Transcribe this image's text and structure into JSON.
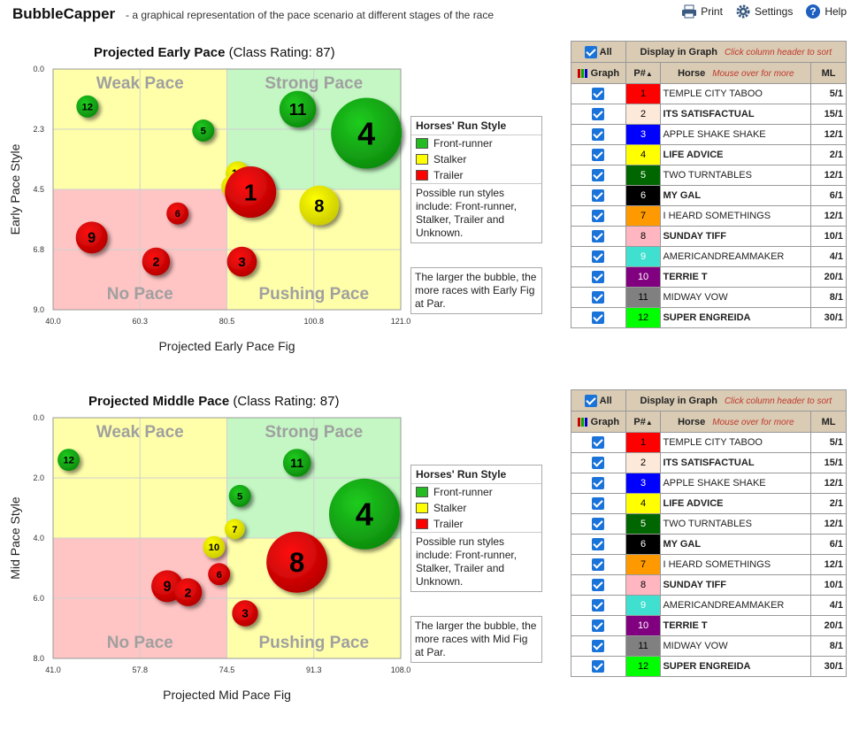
{
  "app": {
    "title": "BubbleCapper",
    "subtitle": "- a graphical representation of the pace scenario at different stages of the race",
    "toolbar": {
      "print": "Print",
      "settings": "Settings",
      "help": "Help"
    }
  },
  "colors": {
    "front": "#33cc33",
    "stalker": "#ffff00",
    "trailer": "#ff0000",
    "weak": "#ffffaa",
    "strong": "#c2f5c2",
    "nopace": "#ffc0c0",
    "pushing": "#ffffaa"
  },
  "legend": {
    "title": "Horses' Run Style",
    "items": [
      {
        "label": "Front-runner",
        "color": "#22bb22"
      },
      {
        "label": "Stalker",
        "color": "#ffff00"
      },
      {
        "label": "Trailer",
        "color": "#ff0000"
      }
    ],
    "note": "Possible run styles include: Front-runner, Stalker, Trailer and Unknown."
  },
  "quadrants": {
    "weak": "Weak Pace",
    "strong": "Strong Pace",
    "no": "No Pace",
    "pushing": "Pushing Pace"
  },
  "table": {
    "all_label": "All",
    "display_label": "Display in Graph",
    "sort_hint": "Click column header to sort",
    "graph_label": "Graph",
    "pn_label": "P#",
    "horse_label": "Horse",
    "horse_hint": "Mouse over for more",
    "ml_label": "ML",
    "rows": [
      {
        "pn": "1",
        "name": "TEMPLE CITY TABOO",
        "ml": "5/1",
        "bg": "#ff0000",
        "fg": "#000000",
        "bold": false
      },
      {
        "pn": "2",
        "name": "ITS SATISFACTUAL",
        "ml": "15/1",
        "bg": "#fde9d9",
        "fg": "#000000",
        "bold": true
      },
      {
        "pn": "3",
        "name": "APPLE SHAKE SHAKE",
        "ml": "12/1",
        "bg": "#0000ff",
        "fg": "#ffffff",
        "bold": false
      },
      {
        "pn": "4",
        "name": "LIFE ADVICE",
        "ml": "2/1",
        "bg": "#ffff00",
        "fg": "#000000",
        "bold": true
      },
      {
        "pn": "5",
        "name": "TWO TURNTABLES",
        "ml": "12/1",
        "bg": "#006600",
        "fg": "#ffffff",
        "bold": false
      },
      {
        "pn": "6",
        "name": "MY GAL",
        "ml": "6/1",
        "bg": "#000000",
        "fg": "#ffffff",
        "bold": true
      },
      {
        "pn": "7",
        "name": "I HEARD SOMETHINGS",
        "ml": "12/1",
        "bg": "#ff9900",
        "fg": "#000000",
        "bold": false
      },
      {
        "pn": "8",
        "name": "SUNDAY TIFF",
        "ml": "10/1",
        "bg": "#ffb6c1",
        "fg": "#000000",
        "bold": true
      },
      {
        "pn": "9",
        "name": "AMERICANDREAMMAKER",
        "ml": "4/1",
        "bg": "#40e0d0",
        "fg": "#ffffff",
        "bold": false
      },
      {
        "pn": "10",
        "name": "TERRIE T",
        "ml": "20/1",
        "bg": "#800080",
        "fg": "#ffffff",
        "bold": true
      },
      {
        "pn": "11",
        "name": "MIDWAY VOW",
        "ml": "8/1",
        "bg": "#808080",
        "fg": "#000000",
        "bold": false
      },
      {
        "pn": "12",
        "name": "SUPER ENGREIDA",
        "ml": "30/1",
        "bg": "#00ff00",
        "fg": "#000000",
        "bold": true
      }
    ]
  },
  "chart_data": [
    {
      "type": "scatter",
      "title": "Projected Early Pace",
      "class_rating": "(Class Rating: 87)",
      "xlabel": "Projected Early Pace Fig",
      "ylabel": "Early Pace Style",
      "x_ticks": [
        "40.0",
        "60.3",
        "80.5",
        "100.8",
        "121.0"
      ],
      "y_ticks": [
        "0.0",
        "2.3",
        "4.5",
        "6.8",
        "9.0"
      ],
      "xlim": [
        40,
        121
      ],
      "ylim": [
        0,
        9
      ],
      "x_mid": 80.5,
      "y_mid": 4.5,
      "note": "The larger the bubble, the more races with Early Fig at Par.",
      "points": [
        {
          "label": "12",
          "x": 48,
          "y": 1.4,
          "size": 1,
          "style": "front"
        },
        {
          "label": "11",
          "x": 97,
          "y": 1.5,
          "size": 2.5,
          "style": "front"
        },
        {
          "label": "4",
          "x": 113,
          "y": 2.4,
          "size": 6,
          "style": "front"
        },
        {
          "label": "5",
          "x": 75,
          "y": 2.3,
          "size": 1,
          "style": "front"
        },
        {
          "label": "10",
          "x": 83,
          "y": 3.9,
          "size": 1.2,
          "style": "stalker"
        },
        {
          "label": "7",
          "x": 82,
          "y": 4.4,
          "size": 1.2,
          "style": "stalker"
        },
        {
          "label": "1",
          "x": 86,
          "y": 4.6,
          "size": 4,
          "style": "trailer"
        },
        {
          "label": "8",
          "x": 102,
          "y": 5.1,
          "size": 2.8,
          "style": "stalker"
        },
        {
          "label": "6",
          "x": 69,
          "y": 5.4,
          "size": 1,
          "style": "trailer"
        },
        {
          "label": "9",
          "x": 49,
          "y": 6.3,
          "size": 2,
          "style": "trailer"
        },
        {
          "label": "2",
          "x": 64,
          "y": 7.2,
          "size": 1.6,
          "style": "trailer"
        },
        {
          "label": "3",
          "x": 84,
          "y": 7.2,
          "size": 1.8,
          "style": "trailer"
        }
      ]
    },
    {
      "type": "scatter",
      "title": "Projected Middle Pace",
      "class_rating": "(Class Rating: 87)",
      "xlabel": "Projected Mid Pace Fig",
      "ylabel": "Mid Pace Style",
      "x_ticks": [
        "41.0",
        "57.8",
        "74.5",
        "91.3",
        "108.0"
      ],
      "y_ticks": [
        "0.0",
        "2.0",
        "4.0",
        "6.0",
        "8.0"
      ],
      "xlim": [
        41,
        108
      ],
      "ylim": [
        0,
        8
      ],
      "x_mid": 74.5,
      "y_mid": 4,
      "note": "The larger the bubble, the more races with Mid Fig at Par.",
      "points": [
        {
          "label": "12",
          "x": 44,
          "y": 1.4,
          "size": 1,
          "style": "front"
        },
        {
          "label": "11",
          "x": 88,
          "y": 1.5,
          "size": 1.6,
          "style": "front"
        },
        {
          "label": "4",
          "x": 101,
          "y": 3.2,
          "size": 6,
          "style": "front"
        },
        {
          "label": "5",
          "x": 77,
          "y": 2.6,
          "size": 1,
          "style": "front"
        },
        {
          "label": "7",
          "x": 76,
          "y": 3.7,
          "size": 0.8,
          "style": "stalker"
        },
        {
          "label": "10",
          "x": 72,
          "y": 4.3,
          "size": 1,
          "style": "stalker"
        },
        {
          "label": "8",
          "x": 88,
          "y": 4.8,
          "size": 5,
          "style": "trailer"
        },
        {
          "label": "6",
          "x": 73,
          "y": 5.2,
          "size": 1,
          "style": "trailer"
        },
        {
          "label": "9",
          "x": 63,
          "y": 5.6,
          "size": 2,
          "style": "trailer"
        },
        {
          "label": "2",
          "x": 67,
          "y": 5.8,
          "size": 1.6,
          "style": "trailer"
        },
        {
          "label": "3",
          "x": 78,
          "y": 6.5,
          "size": 1.4,
          "style": "trailer"
        }
      ]
    }
  ]
}
